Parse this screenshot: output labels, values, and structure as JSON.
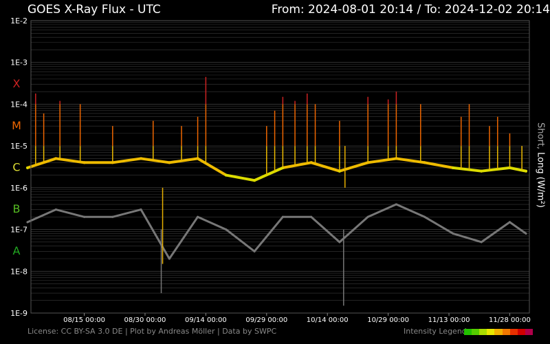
{
  "header": {
    "title": "GOES X-Ray Flux - UTC",
    "range_text": "From: 2024-08-01 20:14  /  To: 2024-12-02 20:14"
  },
  "side_label": {
    "short": "Short",
    "sep": ", ",
    "long": "Long (W/m²)"
  },
  "footer": {
    "license": "License: CC BY-SA 3.0 DE | Plot by Andreas Möller | Data by SWPC",
    "legend_label": "Intensity Legend",
    "legend_colors": [
      "#22c000",
      "#55cc00",
      "#aadd00",
      "#e8e800",
      "#f0b000",
      "#f07800",
      "#e83000",
      "#d00000",
      "#b0004a"
    ]
  },
  "colors": {
    "grid": "#3a3a3a",
    "frame": "#555555",
    "long_series": "#dcdc00",
    "short_series": "#777777",
    "class_A": "#22aa22",
    "class_B": "#55bb22",
    "class_C": "#dddd33",
    "class_M": "#ee6600",
    "class_X": "#cc2222"
  },
  "chart_data": {
    "type": "line",
    "title": "GOES X-Ray Flux - UTC",
    "ylabel": "Short, Long (W/m²)",
    "y_scale": "log",
    "ylim": [
      1e-09,
      0.01
    ],
    "y_tick_labels": [
      "1E-9",
      "1E-8",
      "1E-7",
      "1E-6",
      "1E-5",
      "1E-4",
      "1E-3",
      "1E-2"
    ],
    "flare_classes": [
      "A",
      "B",
      "C",
      "M",
      "X"
    ],
    "xlim": [
      "2024-08-01 20:14",
      "2024-12-02 20:14"
    ],
    "x_tick_labels": [
      "08/15 00:00",
      "08/30 00:00",
      "09/14 00:00",
      "09/29 00:00",
      "10/14 00:00",
      "10/29 00:00",
      "11/13 00:00",
      "11/28 00:00"
    ],
    "grid": true,
    "series": [
      {
        "name": "Long",
        "x": [
          "2024-08-01",
          "2024-08-08",
          "2024-08-15",
          "2024-08-22",
          "2024-08-29",
          "2024-09-05",
          "2024-09-12",
          "2024-09-19",
          "2024-09-26",
          "2024-10-03",
          "2024-10-10",
          "2024-10-17",
          "2024-10-24",
          "2024-10-31",
          "2024-11-07",
          "2024-11-14",
          "2024-11-21",
          "2024-11-28",
          "2024-12-02"
        ],
        "values": [
          3e-06,
          5e-06,
          4e-06,
          4e-06,
          5e-06,
          4e-06,
          5e-06,
          2e-06,
          1.5e-06,
          3e-06,
          4e-06,
          2.5e-06,
          4e-06,
          5e-06,
          4e-06,
          3e-06,
          2.5e-06,
          3e-06,
          2.5e-06
        ]
      },
      {
        "name": "Short",
        "x": [
          "2024-08-01",
          "2024-08-08",
          "2024-08-15",
          "2024-08-22",
          "2024-08-29",
          "2024-09-05",
          "2024-09-12",
          "2024-09-19",
          "2024-09-26",
          "2024-10-03",
          "2024-10-10",
          "2024-10-17",
          "2024-10-24",
          "2024-10-31",
          "2024-11-07",
          "2024-11-14",
          "2024-11-21",
          "2024-11-28",
          "2024-12-02"
        ],
        "values": [
          1.5e-07,
          3e-07,
          2e-07,
          2e-07,
          3e-07,
          2e-08,
          2e-07,
          1e-07,
          3e-08,
          2e-07,
          2e-07,
          5e-08,
          2e-07,
          4e-07,
          2e-07,
          8e-08,
          5e-08,
          1.5e-07,
          8e-08
        ]
      }
    ],
    "flare_peaks": [
      {
        "x": "2024-08-03",
        "value": 0.00018
      },
      {
        "x": "2024-08-05",
        "value": 6e-05
      },
      {
        "x": "2024-08-09",
        "value": 0.00012
      },
      {
        "x": "2024-08-14",
        "value": 0.0001
      },
      {
        "x": "2024-08-22",
        "value": 3e-05
      },
      {
        "x": "2024-09-01",
        "value": 4e-05
      },
      {
        "x": "2024-09-08",
        "value": 3e-05
      },
      {
        "x": "2024-09-12",
        "value": 5e-05
      },
      {
        "x": "2024-09-14",
        "value": 0.00045
      },
      {
        "x": "2024-09-29",
        "value": 3e-05
      },
      {
        "x": "2024-10-01",
        "value": 7e-05
      },
      {
        "x": "2024-10-03",
        "value": 0.00015
      },
      {
        "x": "2024-10-06",
        "value": 0.00012
      },
      {
        "x": "2024-10-09",
        "value": 0.00018
      },
      {
        "x": "2024-10-11",
        "value": 0.0001
      },
      {
        "x": "2024-10-17",
        "value": 4e-05
      },
      {
        "x": "2024-10-24",
        "value": 0.00015
      },
      {
        "x": "2024-10-29",
        "value": 0.00013
      },
      {
        "x": "2024-10-31",
        "value": 0.0002
      },
      {
        "x": "2024-11-06",
        "value": 0.0001
      },
      {
        "x": "2024-11-16",
        "value": 5e-05
      },
      {
        "x": "2024-11-18",
        "value": 0.0001
      },
      {
        "x": "2024-11-23",
        "value": 3e-05
      },
      {
        "x": "2024-11-25",
        "value": 5e-05
      },
      {
        "x": "2024-11-28",
        "value": 2e-05
      },
      {
        "x": "2024-12-01",
        "value": 1e-05
      }
    ],
    "data_gaps": [
      {
        "x": "2024-09-03",
        "short_value": 3e-09,
        "long_value": 1.5e-08
      },
      {
        "x": "2024-10-18",
        "short_value": 1.5e-09,
        "long_value": 1e-05
      }
    ]
  }
}
